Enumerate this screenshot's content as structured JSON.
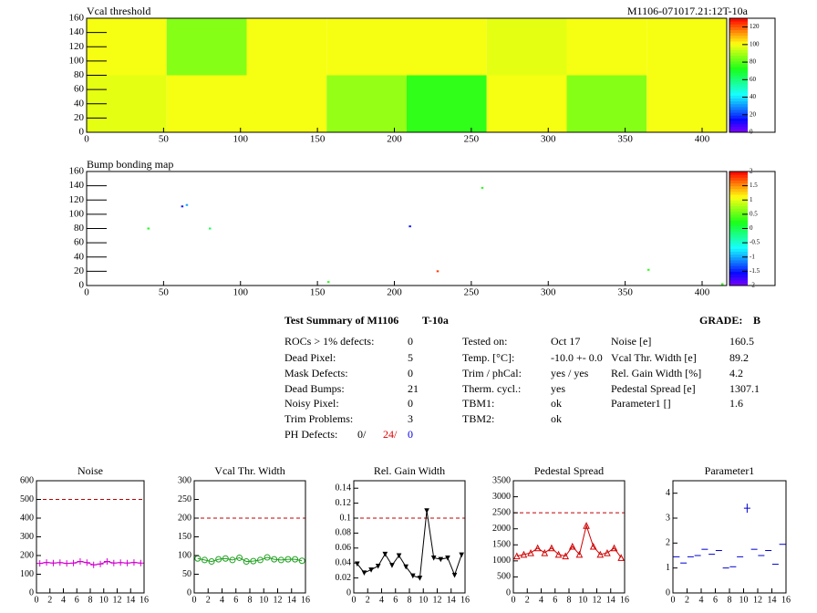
{
  "chart_data": [
    {
      "type": "heatmap",
      "title": "Vcal threshold",
      "subtitle": "M1106-071017.21:12T-10a",
      "xbins": [
        0,
        52,
        104,
        156,
        208,
        260,
        312,
        364,
        416
      ],
      "ybins": [
        0,
        80,
        160
      ],
      "values": [
        [
          98,
          100,
          100,
          88,
          75,
          100,
          86,
          100
        ],
        [
          100,
          86,
          100,
          100,
          100,
          98,
          100,
          100
        ]
      ],
      "xlim": [
        0,
        416
      ],
      "xticks": [
        0,
        50,
        100,
        150,
        200,
        250,
        300,
        350,
        400
      ],
      "ylim": [
        0,
        160
      ],
      "yticks": [
        0,
        20,
        40,
        60,
        80,
        100,
        120,
        140,
        160
      ],
      "zlim": [
        0,
        130
      ],
      "zticks": [
        0,
        20,
        40,
        60,
        80,
        100,
        120
      ]
    },
    {
      "type": "scatter",
      "title": "Bump bonding map",
      "x": [
        40,
        62,
        65,
        80,
        157,
        210,
        228,
        257,
        365,
        413
      ],
      "y": [
        80,
        111,
        113,
        80,
        5,
        83,
        20,
        137,
        22,
        2
      ],
      "z": [
        0.2,
        -1.5,
        -1,
        0,
        0.3,
        -1.5,
        1.8,
        0.3,
        0.3,
        0.3
      ],
      "xlim": [
        0,
        416
      ],
      "xticks": [
        0,
        50,
        100,
        150,
        200,
        250,
        300,
        350,
        400
      ],
      "ylim": [
        0,
        160
      ],
      "yticks": [
        0,
        20,
        40,
        60,
        80,
        100,
        120,
        140,
        160
      ],
      "zlim": [
        -2,
        2
      ],
      "zticks": [
        -2,
        -1.5,
        -1,
        -0.5,
        0,
        0.5,
        1,
        1.5,
        2
      ]
    },
    {
      "type": "line",
      "title": "Noise",
      "color": "#d000d0",
      "marker": "plus",
      "connect": true,
      "x": [
        0.5,
        1.5,
        2.5,
        3.5,
        4.5,
        5.5,
        6.5,
        7.5,
        8.5,
        9.5,
        10.5,
        11.5,
        12.5,
        13.5,
        14.5,
        15.5
      ],
      "values": [
        158,
        163,
        160,
        162,
        158,
        160,
        168,
        162,
        150,
        155,
        168,
        160,
        162,
        160,
        163,
        160
      ],
      "reference": 500,
      "xlim": [
        0,
        16
      ],
      "xticks": [
        0,
        2,
        4,
        6,
        8,
        10,
        12,
        14,
        16
      ],
      "ylim": [
        0,
        600
      ],
      "yticks": [
        0,
        100,
        200,
        300,
        400,
        500,
        600
      ]
    },
    {
      "type": "line",
      "title": "Vcal Thr. Width",
      "color": "#20a020",
      "marker": "circle",
      "connect": true,
      "x": [
        0.5,
        1.5,
        2.5,
        3.5,
        4.5,
        5.5,
        6.5,
        7.5,
        8.5,
        9.5,
        10.5,
        11.5,
        12.5,
        13.5,
        14.5,
        15.5
      ],
      "values": [
        92,
        88,
        84,
        90,
        92,
        88,
        94,
        84,
        85,
        88,
        95,
        90,
        88,
        90,
        90,
        86
      ],
      "reference": 200,
      "xlim": [
        0,
        16
      ],
      "xticks": [
        0,
        2,
        4,
        6,
        8,
        10,
        12,
        14,
        16
      ],
      "ylim": [
        0,
        300
      ],
      "yticks": [
        0,
        50,
        100,
        150,
        200,
        250,
        300
      ]
    },
    {
      "type": "line",
      "title": "Rel. Gain Width",
      "color": "#000000",
      "marker": "triangle-down",
      "connect": true,
      "x": [
        0.5,
        1.5,
        2.5,
        3.5,
        4.5,
        5.5,
        6.5,
        7.5,
        8.5,
        9.5,
        10.5,
        11.5,
        12.5,
        13.5,
        14.5,
        15.5
      ],
      "values": [
        0.039,
        0.027,
        0.031,
        0.036,
        0.052,
        0.037,
        0.05,
        0.035,
        0.023,
        0.02,
        0.11,
        0.047,
        0.045,
        0.047,
        0.024,
        0.051
      ],
      "reference": 0.1,
      "xlim": [
        0,
        16
      ],
      "xticks": [
        0,
        2,
        4,
        6,
        8,
        10,
        12,
        14,
        16
      ],
      "ylim": [
        0,
        0.15
      ],
      "yticks": [
        0,
        0.02,
        0.04,
        0.06,
        0.08,
        0.1,
        0.12,
        0.14
      ]
    },
    {
      "type": "line",
      "title": "Pedestal Spread",
      "color": "#d00000",
      "marker": "triangle",
      "connect": true,
      "x": [
        0.5,
        1.5,
        2.5,
        3.5,
        4.5,
        5.5,
        6.5,
        7.5,
        8.5,
        9.5,
        10.5,
        11.5,
        12.5,
        13.5,
        14.5,
        15.5
      ],
      "values": [
        1150,
        1200,
        1250,
        1400,
        1250,
        1400,
        1200,
        1150,
        1450,
        1200,
        2100,
        1450,
        1200,
        1250,
        1400,
        1100
      ],
      "reference": 2500,
      "xlim": [
        0,
        16
      ],
      "xticks": [
        0,
        2,
        4,
        6,
        8,
        10,
        12,
        14,
        16
      ],
      "ylim": [
        0,
        3500
      ],
      "yticks": [
        0,
        500,
        1000,
        1500,
        2000,
        2500,
        3000,
        3500
      ]
    },
    {
      "type": "line",
      "title": "Parameter1",
      "color": "#0000d0",
      "marker": "cross",
      "connect": false,
      "x": [
        0.5,
        1.5,
        2.5,
        3.5,
        4.5,
        5.5,
        6.5,
        7.5,
        8.5,
        9.5,
        10.5,
        11.5,
        12.5,
        13.5,
        14.5,
        15.5
      ],
      "values": [
        1.45,
        1.2,
        1.45,
        1.5,
        1.75,
        1.55,
        1.7,
        1.0,
        1.05,
        1.45,
        3.4,
        1.75,
        1.5,
        1.7,
        1.15,
        1.95
      ],
      "xlim": [
        0,
        16
      ],
      "xticks": [
        0,
        2,
        4,
        6,
        8,
        10,
        12,
        14,
        16
      ],
      "ylim": [
        0,
        4.5
      ],
      "yticks": [
        0,
        1,
        2,
        3,
        4
      ]
    }
  ],
  "summary": {
    "title": "Test Summary of M1106",
    "module": "T-10a",
    "grade_label": "GRADE:",
    "grade": "B",
    "col1": [
      [
        "ROCs > 1% defects:",
        0
      ],
      [
        "Dead Pixel:",
        5
      ],
      [
        "Mask Defects:",
        0
      ],
      [
        "Dead Bumps:",
        21
      ],
      [
        "Noisy Pixel:",
        0
      ],
      [
        "Trim Problems:",
        3
      ]
    ],
    "ph_label": "PH Defects:",
    "ph_parts": [
      {
        "text": "0/",
        "color": "#000000"
      },
      {
        "text": "24/",
        "color": "#e00000"
      },
      {
        "text": "0",
        "color": "#0000e0"
      }
    ],
    "col2": [
      [
        "Tested on:",
        "Oct 17"
      ],
      [
        "Temp. [°C]:",
        "-10.0 +- 0.0"
      ],
      [
        "Trim / phCal:",
        "yes / yes"
      ],
      [
        "Therm. cycl.:",
        "yes"
      ],
      [
        "TBM1:",
        "ok"
      ],
      [
        "TBM2:",
        "ok"
      ]
    ],
    "col3": [
      [
        "Noise [e]",
        160.5
      ],
      [
        "Vcal Thr. Width [e]",
        89.2
      ],
      [
        "Rel. Gain Width [%]",
        4.2
      ],
      [
        "Pedestal Spread [e]",
        1307.1
      ],
      [
        "Parameter1 []",
        1.6
      ]
    ]
  }
}
